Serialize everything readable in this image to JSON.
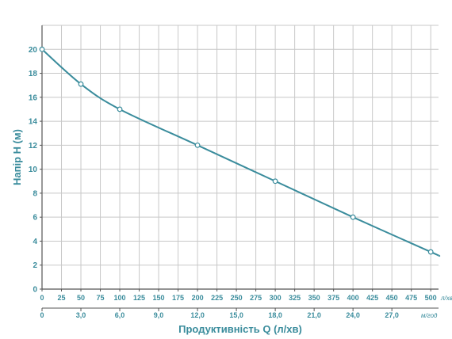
{
  "colors": {
    "curve": "#3a8c9c",
    "grid": "#c8c8c8",
    "axis": "#555555",
    "text": "#3a8c9c",
    "point_fill": "#ffffff"
  },
  "chart_data": {
    "type": "line",
    "title": "",
    "ylabel": "Напір H (м)",
    "xlabel": "Продуктивність Q (л/хв)",
    "ylim": [
      0,
      22
    ],
    "xlim": [
      0,
      510
    ],
    "grid": true,
    "yticks": [
      0,
      2,
      4,
      6,
      8,
      10,
      12,
      14,
      16,
      18,
      20
    ],
    "xticks_primary": [
      0,
      25,
      50,
      75,
      100,
      125,
      150,
      175,
      200,
      225,
      250,
      275,
      300,
      325,
      350,
      375,
      400,
      425,
      450,
      475,
      500
    ],
    "xunit_primary": "л/хв",
    "xticks_secondary": [
      "0",
      "3,0",
      "6,0",
      "9,0",
      "12,0",
      "15,0",
      "18,0",
      "21,0",
      "24,0",
      "27,0"
    ],
    "xunit_secondary": "м/год",
    "series": [
      {
        "x": [
          0,
          50,
          100,
          200,
          300,
          400,
          500,
          510
        ],
        "y": [
          20,
          17.1,
          15,
          12,
          9,
          6,
          3.1,
          2.8
        ],
        "markers": [
          true,
          true,
          true,
          true,
          true,
          true,
          true,
          false
        ]
      }
    ]
  }
}
